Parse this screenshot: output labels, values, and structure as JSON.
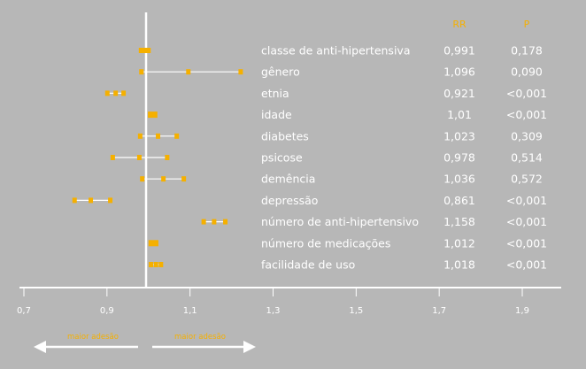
{
  "chart_data": {
    "type": "forest",
    "xlim": [
      0.7,
      1.9
    ],
    "x_ticks": [
      "0,7",
      "0,9",
      "1,1",
      "1,3",
      "1,5",
      "1,7",
      "1,9"
    ],
    "x_tick_values": [
      0.7,
      0.9,
      1.1,
      1.3,
      1.5,
      1.7,
      1.9
    ],
    "reference_line": 0.99,
    "columns": {
      "rr": "RR",
      "p": "P"
    },
    "rows": [
      {
        "label": "classe de anti-hipertensiva",
        "rr_text": "0,991",
        "p_text": "0,178",
        "rr": 0.991,
        "lo": 0.982,
        "hi": 1.0
      },
      {
        "label": "gênero",
        "rr_text": "1,096",
        "p_text": "0,090",
        "rr": 1.096,
        "lo": 0.983,
        "hi": 1.222
      },
      {
        "label": "etnia",
        "rr_text": "0,921",
        "p_text": "<0,001",
        "rr": 0.921,
        "lo": 0.901,
        "hi": 0.94
      },
      {
        "label": "idade",
        "rr_text": "1,01",
        "p_text": "<0,001",
        "rr": 1.01,
        "lo": 1.005,
        "hi": 1.015
      },
      {
        "label": "diabetes",
        "rr_text": "1,023",
        "p_text": "0,309",
        "rr": 1.023,
        "lo": 0.98,
        "hi": 1.068
      },
      {
        "label": "psicose",
        "rr_text": "0,978",
        "p_text": "0,514",
        "rr": 0.978,
        "lo": 0.914,
        "hi": 1.045
      },
      {
        "label": "demência",
        "rr_text": "1,036",
        "p_text": "0,572",
        "rr": 1.036,
        "lo": 0.985,
        "hi": 1.085
      },
      {
        "label": "depressão",
        "rr_text": "0,861",
        "p_text": "<0,001",
        "rr": 0.861,
        "lo": 0.822,
        "hi": 0.908
      },
      {
        "label": "número de anti-hipertensivo",
        "rr_text": "1,158",
        "p_text": "<0,001",
        "rr": 1.158,
        "lo": 1.133,
        "hi": 1.185
      },
      {
        "label": "número de medicações",
        "rr_text": "1,012",
        "p_text": "<0,001",
        "rr": 1.012,
        "lo": 1.007,
        "hi": 1.018
      },
      {
        "label": "facilidade de uso",
        "rr_text": "1,018",
        "p_text": "<0,001",
        "rr": 1.018,
        "lo": 1.006,
        "hi": 1.03
      }
    ],
    "arrows": {
      "left": "maior adesão",
      "right": "maior adesão"
    },
    "colors": {
      "background": "#b7b7b7",
      "accent": "#f5b000",
      "lines": "#ffffff",
      "text": "#ffffff"
    }
  }
}
